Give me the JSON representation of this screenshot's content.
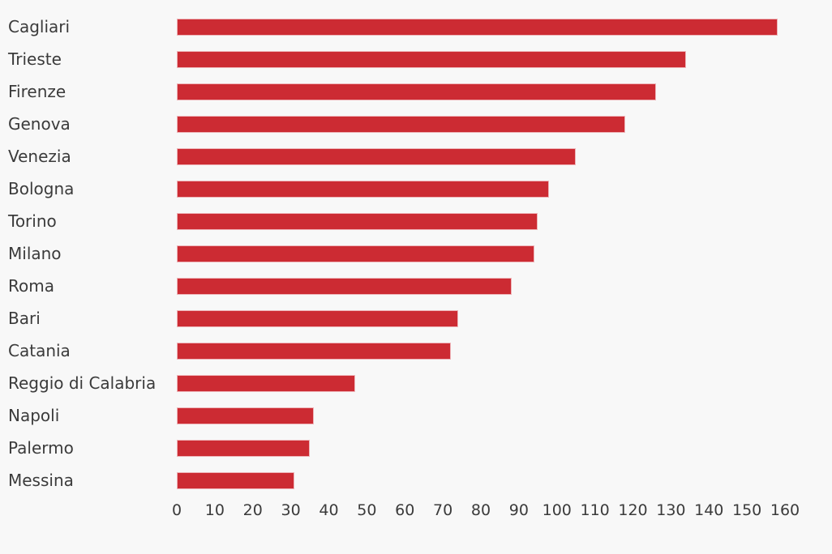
{
  "chart_data": {
    "type": "bar",
    "orientation": "horizontal",
    "title": "",
    "xlabel": "",
    "ylabel": "",
    "categories": [
      "Cagliari",
      "Trieste",
      "Firenze",
      "Genova",
      "Venezia",
      "Bologna",
      "Torino",
      "Milano",
      "Roma",
      "Bari",
      "Catania",
      "Reggio di Calabria",
      "Napoli",
      "Palermo",
      "Messina"
    ],
    "values": [
      158,
      134,
      126,
      118,
      105,
      98,
      95,
      94,
      88,
      74,
      72,
      47,
      36,
      35,
      31
    ],
    "xlim": [
      0,
      160
    ],
    "x_ticks": [
      0,
      10,
      20,
      30,
      40,
      50,
      60,
      70,
      80,
      90,
      100,
      110,
      120,
      130,
      140,
      150,
      160
    ],
    "grid": false,
    "legend": null,
    "bar_color": "#cc2b33",
    "bar_edge_color": "#eeb4b8",
    "background_color": "#f8f8f8",
    "text_color": "#3b3b3b"
  }
}
